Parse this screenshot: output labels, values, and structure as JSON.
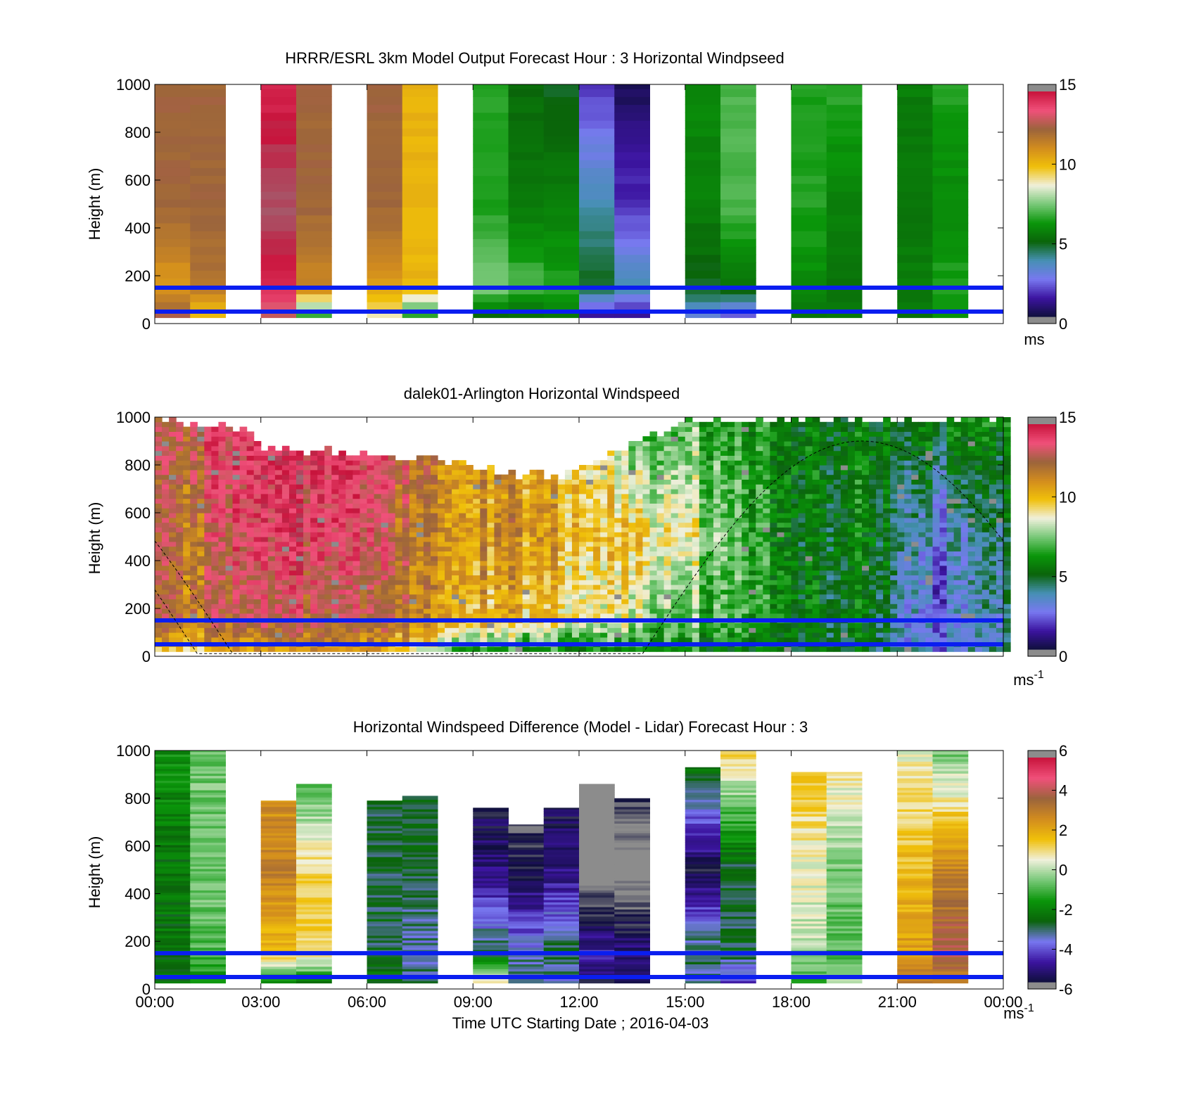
{
  "x_ticks": [
    "00:00",
    "03:00",
    "06:00",
    "09:00",
    "12:00",
    "15:00",
    "18:00",
    "21:00",
    "00:00"
  ],
  "x_label": "Time UTC  Starting Date ; 2016-04-03",
  "colors": {
    "ref_line": "#0a1ef0",
    "bg": "#ffffff",
    "nan": "#ffffff"
  },
  "colormaps": {
    "speed": [
      "#0f0f3c",
      "#3c14a0",
      "#7878f0",
      "#4690b4",
      "#0a640a",
      "#0a960a",
      "#78c878",
      "#f0f0dc",
      "#f0c00a",
      "#d28c1e",
      "#9b643c",
      "#f0507a",
      "#c8143c",
      "#8c8c8c"
    ],
    "diff": [
      "#8c8c8c",
      "#0f0f3c",
      "#3c14a0",
      "#7878f0",
      "#0a640a",
      "#0a960a",
      "#78c878",
      "#f0f0dc",
      "#f0c00a",
      "#d28c1e",
      "#9b643c",
      "#f0507a",
      "#c8143c",
      "#8c8c8c"
    ]
  },
  "panels": [
    {
      "id": "model",
      "title": "HRRR/ESRL 3km Model Output   Forecast Hour : 3 Horizontal Windpseed",
      "ylabel": "Height (m)",
      "yticks": [
        "0",
        "200",
        "400",
        "600",
        "800",
        "1000"
      ],
      "cbar_ticks": [
        "0",
        "5",
        "10",
        "15"
      ],
      "cbar_unit": "ms",
      "cbar_unit_sup": "",
      "clim": [
        0,
        15
      ],
      "ref_lines_m": [
        150,
        50
      ],
      "chart_data": {
        "type": "heatmap",
        "x_range_hours": [
          0,
          24
        ],
        "y_range_m": [
          0,
          1000
        ],
        "columns": [
          {
            "t": 0.5,
            "bottom": 12,
            "low": 10,
            "mid": 11.5,
            "top": 11.5
          },
          {
            "t": 1.5,
            "bottom": 9,
            "low": 11,
            "mid": 11.5,
            "top": 11.5
          },
          {
            "t": 3.5,
            "bottom": 12,
            "low": 13.5,
            "mid": 14.5,
            "top": 13.5
          },
          {
            "t": 4.5,
            "bottom": 5.5,
            "low": 10.5,
            "mid": 11.5,
            "top": 11.5
          },
          {
            "t": 6.5,
            "bottom": 8,
            "low": 10,
            "mid": 11.5,
            "top": 11.5
          },
          {
            "t": 7.5,
            "bottom": 5.5,
            "low": 9.5,
            "mid": 9.5,
            "top": 9.5
          },
          {
            "t": 9.5,
            "bottom": 4.5,
            "low": 7,
            "mid": 6,
            "top": 6
          },
          {
            "t": 10.5,
            "bottom": 4.5,
            "low": 6.5,
            "mid": 5,
            "top": 4.8
          },
          {
            "t": 11.5,
            "bottom": 5,
            "low": 6,
            "mid": 5.2,
            "top": 4.5
          },
          {
            "t": 12.5,
            "bottom": 0.5,
            "low": 4.5,
            "mid": 3.5,
            "top": 1.5
          },
          {
            "t": 13.5,
            "bottom": 0.5,
            "low": 3.5,
            "mid": 1.5,
            "top": 0.3
          },
          {
            "t": 15.5,
            "bottom": 2.5,
            "low": 4.5,
            "mid": 5.2,
            "top": 5.5
          },
          {
            "t": 16.5,
            "bottom": 1.5,
            "low": 5,
            "mid": 6.5,
            "top": 6.5
          },
          {
            "t": 18.5,
            "bottom": 5,
            "low": 5.5,
            "mid": 6,
            "top": 6
          },
          {
            "t": 19.5,
            "bottom": 5,
            "low": 5,
            "mid": 5.2,
            "top": 6.2
          },
          {
            "t": 21.5,
            "bottom": 5,
            "low": 5.2,
            "mid": 5,
            "top": 5.2
          },
          {
            "t": 22.5,
            "bottom": 5.5,
            "low": 6,
            "mid": 5.5,
            "top": 6
          }
        ]
      }
    },
    {
      "id": "lidar",
      "title": "dalek01-Arlington  Horizontal Windspeed",
      "ylabel": "Height (m)",
      "yticks": [
        "0",
        "200",
        "400",
        "600",
        "800",
        "1000"
      ],
      "cbar_ticks": [
        "0",
        "5",
        "10",
        "15"
      ],
      "cbar_unit": "ms",
      "cbar_unit_sup": "-1",
      "clim": [
        0,
        15
      ],
      "ref_lines_m": [
        150,
        50
      ],
      "chart_data": {
        "type": "heatmap",
        "x_range_hours": [
          0,
          24
        ],
        "y_range_m": [
          0,
          1000
        ],
        "profile_anchors": [
          {
            "t": 0,
            "bottom": 8.5,
            "low": 11,
            "mid": 11,
            "top": 11
          },
          {
            "t": 1.5,
            "bottom": 9,
            "low": 11,
            "mid": 11.5,
            "top": 12.5
          },
          {
            "t": 3,
            "bottom": 10,
            "low": 12,
            "mid": 13,
            "top": 13.5
          },
          {
            "t": 5,
            "bottom": 9.5,
            "low": 11.5,
            "mid": 12.5,
            "top": 13
          },
          {
            "t": 7,
            "bottom": 9.5,
            "low": 11,
            "mid": 11.5,
            "top": 12
          },
          {
            "t": 8.5,
            "bottom": 6,
            "low": 9.5,
            "mid": 10,
            "top": 10
          },
          {
            "t": 10,
            "bottom": 5.5,
            "low": 9.5,
            "mid": 10.5,
            "top": 10
          },
          {
            "t": 12,
            "bottom": 5.5,
            "low": 8.5,
            "mid": 9.5,
            "top": 9
          },
          {
            "t": 13.5,
            "bottom": 5.5,
            "low": 7.5,
            "mid": 9,
            "top": 6
          },
          {
            "t": 15,
            "bottom": 5.5,
            "low": 6.5,
            "mid": 8.5,
            "top": 6.5
          },
          {
            "t": 16.5,
            "bottom": 5,
            "low": 6,
            "mid": 6,
            "top": 5.5
          },
          {
            "t": 18.5,
            "bottom": 5,
            "low": 5,
            "mid": 5,
            "top": 5.2
          },
          {
            "t": 20.5,
            "bottom": 4.5,
            "low": 4.5,
            "mid": 5,
            "top": 5
          },
          {
            "t": 22,
            "bottom": 2.5,
            "low": 2,
            "mid": 2.5,
            "top": 5.2
          },
          {
            "t": 24,
            "bottom": 3.5,
            "low": 3.5,
            "mid": 4,
            "top": 5.2
          }
        ],
        "valid_top_m": [
          {
            "t": 0,
            "h": 1000
          },
          {
            "t": 2.5,
            "h": 960
          },
          {
            "t": 3,
            "h": 880
          },
          {
            "t": 5,
            "h": 870
          },
          {
            "t": 7,
            "h": 850
          },
          {
            "t": 8.5,
            "h": 830
          },
          {
            "t": 9.5,
            "h": 790
          },
          {
            "t": 10.5,
            "h": 760
          },
          {
            "t": 12,
            "h": 780
          },
          {
            "t": 13.5,
            "h": 900
          },
          {
            "t": 15,
            "h": 1000
          },
          {
            "t": 24,
            "h": 1000
          }
        ],
        "boundary_layer_curve": "height(t) = 900 * sin(pi * (t - 13.75) / 12.5)"
      }
    },
    {
      "id": "diff",
      "title": "Horizontal Windspeed Difference (Model - Lidar) Forecast Hour : 3",
      "ylabel": "Height (m)",
      "yticks": [
        "0",
        "200",
        "400",
        "600",
        "800",
        "1000"
      ],
      "cbar_ticks": [
        "-6",
        "-4",
        "-2",
        "0",
        "2",
        "4",
        "6"
      ],
      "cbar_unit": "ms",
      "cbar_unit_sup": "-1",
      "clim": [
        -6,
        6
      ],
      "ref_lines_m": [
        150,
        50
      ],
      "chart_data": {
        "type": "heatmap",
        "x_range_hours": [
          0,
          24
        ],
        "y_range_m": [
          0,
          1000
        ],
        "columns": [
          {
            "t": 0.5,
            "top_m": 1000,
            "bottom": -2,
            "low": -2,
            "mid": -2,
            "top": -1.5
          },
          {
            "t": 1.5,
            "top_m": 1000,
            "bottom": -1.5,
            "low": -0.8,
            "mid": -0.5,
            "top": -0.5
          },
          {
            "t": 3.5,
            "top_m": 790,
            "bottom": -2,
            "low": 1.5,
            "mid": 2.5,
            "top": 2
          },
          {
            "t": 4.5,
            "top_m": 860,
            "bottom": -2,
            "low": 1,
            "mid": 1,
            "top": -1.5
          },
          {
            "t": 6.5,
            "top_m": 790,
            "bottom": -2,
            "low": -2.5,
            "mid": -2.5,
            "top": -2.5
          },
          {
            "t": 7.5,
            "top_m": 810,
            "bottom": -2.5,
            "low": -3,
            "mid": -2.5,
            "top": -2.5
          },
          {
            "t": 9.5,
            "top_m": 760,
            "bottom": 1,
            "low": -2.5,
            "mid": -4.5,
            "top": -5.5
          },
          {
            "t": 10.5,
            "top_m": 690,
            "bottom": -2.5,
            "low": -3,
            "mid": -5,
            "top": -6.5
          },
          {
            "t": 11.5,
            "top_m": 760,
            "bottom": -3,
            "low": -2.5,
            "mid": -4.5,
            "top": -5.5
          },
          {
            "t": 12.5,
            "top_m": 860,
            "bottom": -5,
            "low": -4,
            "mid": -6.5,
            "top": -6.5
          },
          {
            "t": 13.5,
            "top_m": 800,
            "bottom": -5,
            "low": -4.5,
            "mid": -6.5,
            "top": -4.5
          },
          {
            "t": 15.5,
            "top_m": 930,
            "bottom": -3,
            "low": -2.5,
            "mid": -5,
            "top": -1.5
          },
          {
            "t": 16.5,
            "top_m": 1000,
            "bottom": -4,
            "low": -2.5,
            "mid": -2.5,
            "top": 1
          },
          {
            "t": 18.5,
            "top_m": 910,
            "bottom": -1,
            "low": 0,
            "mid": 0.5,
            "top": 1.5
          },
          {
            "t": 19.5,
            "top_m": 910,
            "bottom": 0,
            "low": -0.8,
            "mid": -0.5,
            "top": 1
          },
          {
            "t": 21.5,
            "top_m": 1000,
            "bottom": 2.5,
            "low": 2,
            "mid": 1.5,
            "top": 0.5
          },
          {
            "t": 22.5,
            "top_m": 1000,
            "bottom": 2.5,
            "low": 3.5,
            "mid": 2.5,
            "top": -0.5
          }
        ]
      }
    }
  ]
}
